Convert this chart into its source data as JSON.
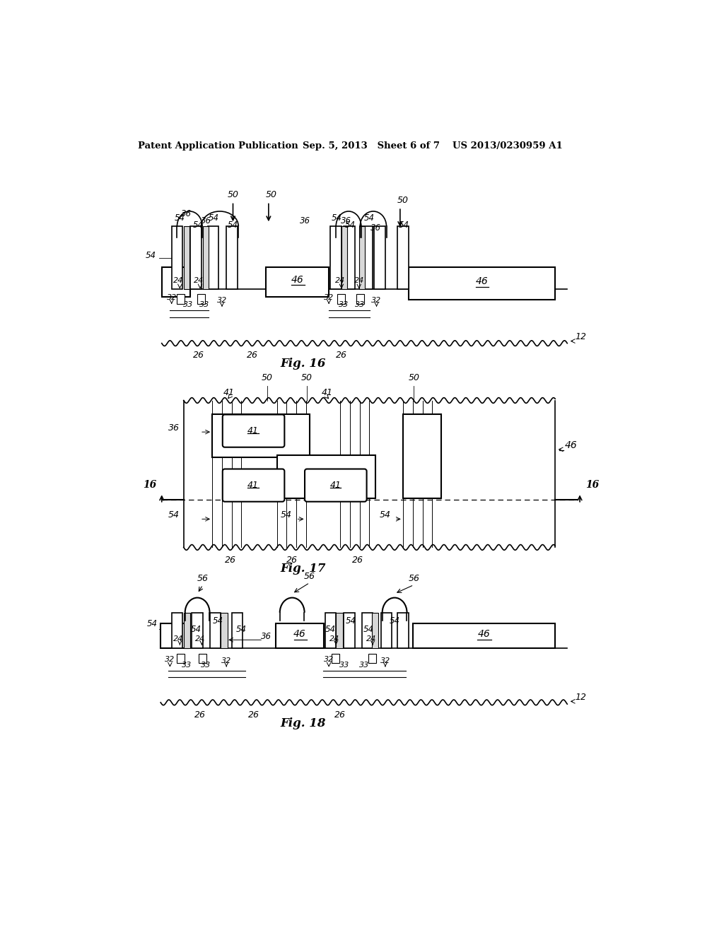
{
  "bg_color": "#ffffff",
  "header_left": "Patent Application Publication",
  "header_mid": "Sep. 5, 2013   Sheet 6 of 7",
  "header_right": "US 2013/0230959 A1",
  "fig16_label": "Fig. 16",
  "fig17_label": "Fig. 17",
  "fig18_label": "Fig. 18"
}
